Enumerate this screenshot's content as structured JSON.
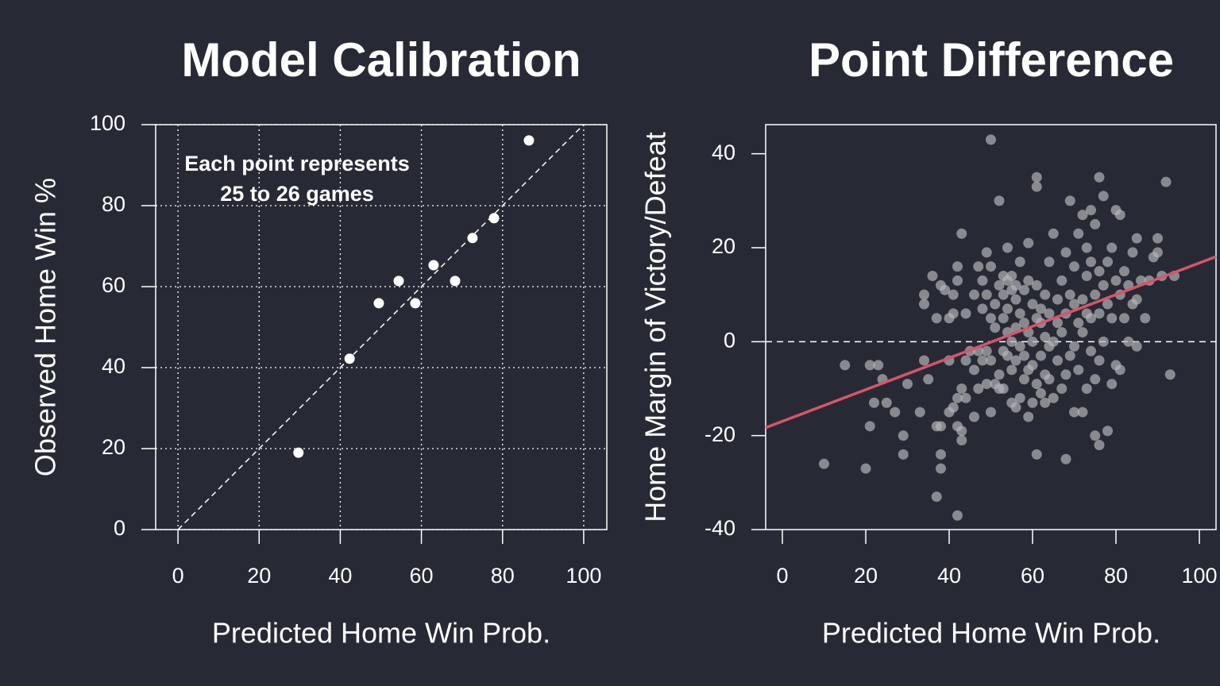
{
  "chart_data": [
    {
      "type": "scatter",
      "title": "Model Calibration",
      "x_label": "Predicted Home Win Prob.",
      "y_label": "Observed Home Win %",
      "annotation": [
        "Each point represents",
        "25 to 26 games"
      ],
      "x": [
        29.7,
        42.3,
        49.5,
        54.4,
        58.5,
        63,
        68.3,
        72.6,
        77.9,
        86.5
      ],
      "y": [
        19,
        42.2,
        55.9,
        61.4,
        55.9,
        65.3,
        61.4,
        72,
        76.9,
        96.1
      ],
      "color": "#ffffff",
      "xlim": [
        -5.5,
        105.7
      ],
      "ylim": [
        0,
        100
      ],
      "xticks": [
        0,
        20,
        40,
        60,
        80,
        100
      ],
      "yticks": [
        0,
        20,
        40,
        60,
        80,
        100
      ],
      "grid": true,
      "reference": "identity"
    },
    {
      "type": "scatter",
      "title": "Point Difference",
      "x_label": "Predicted Home Win Prob.",
      "y_label": "Home Margin of Victory/Defeat",
      "x": [
        10,
        15,
        20,
        21,
        21,
        22,
        23,
        24,
        25,
        27,
        29,
        29,
        30,
        33,
        34,
        34,
        34,
        35,
        36,
        37,
        37,
        37,
        38,
        38,
        38,
        38,
        39,
        40,
        40,
        40,
        41,
        41,
        41,
        42,
        42,
        42,
        42,
        42,
        43,
        43,
        43,
        43,
        44,
        44,
        44,
        45,
        46,
        46,
        46,
        47,
        47,
        47,
        48,
        48,
        48,
        49,
        49,
        49,
        49,
        50,
        50,
        50,
        50,
        50,
        51,
        51,
        51,
        52,
        52,
        52,
        52,
        53,
        53,
        53,
        53,
        53,
        54,
        54,
        54,
        54,
        54,
        55,
        55,
        55,
        55,
        55,
        56,
        56,
        56,
        56,
        56,
        57,
        57,
        57,
        57,
        58,
        58,
        58,
        58,
        59,
        59,
        59,
        59,
        59,
        60,
        60,
        60,
        60,
        61,
        61,
        61,
        61,
        61,
        61,
        62,
        62,
        62,
        62,
        63,
        63,
        63,
        63,
        64,
        64,
        64,
        64,
        65,
        65,
        65,
        66,
        66,
        66,
        67,
        67,
        67,
        68,
        68,
        68,
        68,
        69,
        69,
        69,
        70,
        70,
        70,
        70,
        71,
        71,
        71,
        72,
        72,
        72,
        72,
        73,
        73,
        73,
        73,
        74,
        74,
        74,
        74,
        75,
        75,
        75,
        75,
        76,
        76,
        76,
        76,
        76,
        77,
        77,
        77,
        78,
        78,
        78,
        79,
        79,
        79,
        80,
        80,
        80,
        81,
        81,
        81,
        82,
        82,
        83,
        83,
        84,
        84,
        85,
        85,
        85,
        86,
        87,
        88,
        89,
        90,
        90,
        91,
        92,
        93,
        94
      ],
      "y": [
        -26,
        -5,
        -27,
        -5,
        -18,
        -13,
        -5,
        -8,
        -13,
        -15,
        -20,
        -24,
        -9,
        -15,
        -4,
        8,
        10,
        -8,
        14,
        -18,
        -33,
        5,
        -24,
        -27,
        -18,
        12,
        11,
        -15,
        -4,
        5,
        -14,
        6,
        10,
        -37,
        -12,
        -18,
        16,
        13,
        -19,
        -21,
        -10,
        23,
        -12,
        -4,
        6,
        -2,
        -16,
        -6,
        10,
        -10,
        -2,
        16,
        -4,
        7,
        13,
        -9,
        -2,
        10,
        19,
        -15,
        -4,
        5,
        16,
        43,
        -9,
        3,
        8,
        -10,
        -7,
        12,
        30,
        -10,
        -2,
        5,
        10,
        14,
        -3,
        2,
        7,
        13,
        20,
        -13,
        -6,
        0,
        11,
        14,
        -14,
        -4,
        3,
        9,
        12,
        -12,
        -1,
        6,
        17,
        -8,
        -3,
        4,
        11,
        -16,
        -6,
        2,
        13,
        21,
        -13,
        -5,
        0,
        8,
        -9,
        -24,
        5,
        12,
        33,
        35,
        -11,
        -3,
        4,
        7,
        -13,
        -7,
        1,
        10,
        -8,
        -1,
        6,
        17,
        -12,
        0,
        23,
        -4,
        4,
        9,
        -10,
        2,
        13,
        -25,
        -7,
        6,
        19,
        -3,
        10,
        30,
        -15,
        -1,
        8,
        16,
        -6,
        4,
        23,
        -15,
        2,
        9,
        27,
        -10,
        6,
        14,
        20,
        -2,
        5,
        17,
        28,
        -20,
        -8,
        10,
        25,
        -22,
        -4,
        6,
        15,
        35,
        0,
        12,
        31,
        -19,
        8,
        17,
        -9,
        5,
        20,
        -5,
        13,
        28,
        -6,
        10,
        27,
        5,
        15,
        0,
        12,
        8,
        19,
        -1,
        9,
        22,
        13,
        5,
        13,
        18,
        19,
        22,
        14,
        34,
        -7,
        14
      ],
      "color": "#b4b4b8",
      "xlim": [
        -4,
        104
      ],
      "ylim": [
        -40,
        46.2
      ],
      "xticks": [
        0,
        20,
        40,
        60,
        80,
        100
      ],
      "yticks": [
        -40,
        -20,
        0,
        20,
        40
      ],
      "grid": false,
      "reference_y": 0,
      "trend_line": {
        "x": [
          -4,
          104
        ],
        "y": [
          -18.3,
          18.1
        ],
        "color": "#d9546a"
      }
    }
  ]
}
